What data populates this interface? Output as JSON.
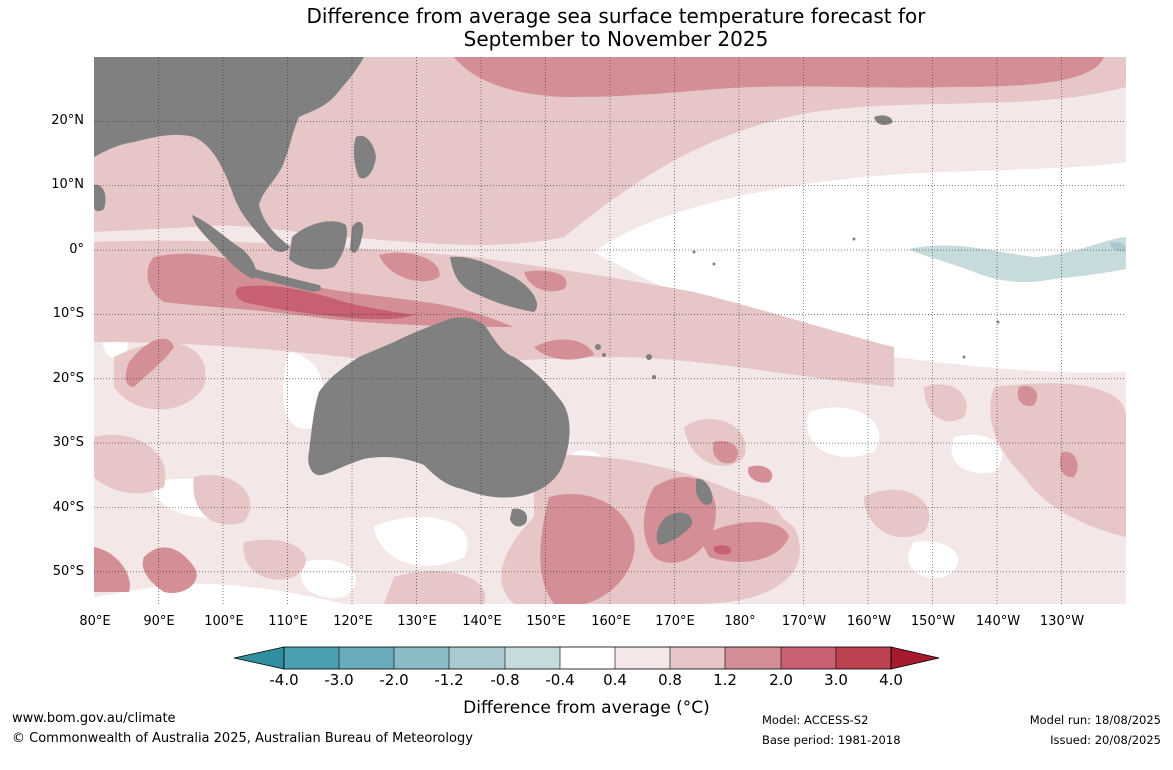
{
  "title": {
    "line1": "Difference from average sea surface temperature forecast for",
    "line2": "September to November 2025"
  },
  "map": {
    "extent": {
      "lon": [
        80,
        240
      ],
      "lat": [
        -55,
        30
      ]
    },
    "gridlines": true,
    "lat_labels": [
      "20°N",
      "10°N",
      "0°",
      "10°S",
      "20°S",
      "30°S",
      "40°S",
      "50°S"
    ],
    "lon_labels": [
      "80°E",
      "90°E",
      "100°E",
      "110°E",
      "120°E",
      "130°E",
      "140°E",
      "150°E",
      "160°E",
      "170°E",
      "180°",
      "170°W",
      "160°W",
      "150°W",
      "140°W",
      "130°W"
    ],
    "land_color": "#808080",
    "colors": {
      "c08": "#f4e7e7",
      "c12": "#e6c6c6",
      "c20": "#d48e96",
      "c30": "#c76070",
      "cm04": "#c8dbdc",
      "cm08": "#a8cad0"
    }
  },
  "colorbar": {
    "ticks": [
      "-4.0",
      "-3.0",
      "-2.0",
      "-1.2",
      "-0.8",
      "-0.4",
      "0.4",
      "0.8",
      "1.2",
      "2.0",
      "3.0",
      "4.0"
    ],
    "colors": [
      "#4aa0b2",
      "#68abbb",
      "#8bbcc6",
      "#a8cad0",
      "#c8dbdc",
      "#ffffff",
      "#f4e7e7",
      "#e6c6c6",
      "#d48e96",
      "#c76070",
      "#bd4352"
    ],
    "extend_low_color": "#2f8f9f",
    "extend_high_color": "#a6192e",
    "label": "Difference from average (°C)"
  },
  "footer": {
    "website": "www.bom.gov.au/climate",
    "copyright": "© Commonwealth of Australia 2025, Australian Bureau of Meteorology",
    "model": "Model: ACCESS-S2",
    "base_period": "Base period: 1981-2018",
    "model_run": "Model run: 18/08/2025",
    "issued": "Issued: 20/08/2025"
  }
}
